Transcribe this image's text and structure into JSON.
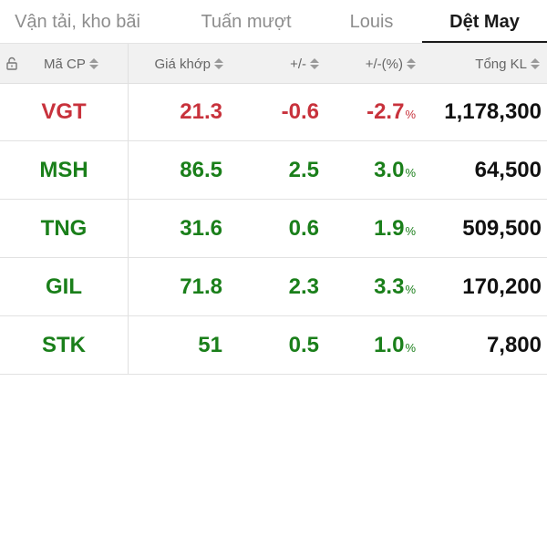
{
  "tabs": [
    {
      "label": "Vận tải, kho bãi",
      "active": false
    },
    {
      "label": "Tuấn mượt",
      "active": false
    },
    {
      "label": "Louis",
      "active": false
    },
    {
      "label": "Dệt May",
      "active": true
    }
  ],
  "header": {
    "code": "Mã CP",
    "price": "Giá khớp",
    "change": "+/-",
    "percent": "+/-(%)",
    "volume": "Tổng KL"
  },
  "icons": {
    "lock": "lock-icon",
    "sort": "sort-icon"
  },
  "colors": {
    "up": "#1a7f1a",
    "down": "#c8323c"
  },
  "rows": [
    {
      "code": "VGT",
      "price": "21.3",
      "change": "-0.6",
      "percent": "-2.7",
      "pct_sym": "%",
      "volume": "1,178,300",
      "trend": "down"
    },
    {
      "code": "MSH",
      "price": "86.5",
      "change": "2.5",
      "percent": "3.0",
      "pct_sym": "%",
      "volume": "64,500",
      "trend": "up"
    },
    {
      "code": "TNG",
      "price": "31.6",
      "change": "0.6",
      "percent": "1.9",
      "pct_sym": "%",
      "volume": "509,500",
      "trend": "up"
    },
    {
      "code": "GIL",
      "price": "71.8",
      "change": "2.3",
      "percent": "3.3",
      "pct_sym": "%",
      "volume": "170,200",
      "trend": "up"
    },
    {
      "code": "STK",
      "price": "51",
      "change": "0.5",
      "percent": "1.0",
      "pct_sym": "%",
      "volume": "7,800",
      "trend": "up"
    }
  ]
}
